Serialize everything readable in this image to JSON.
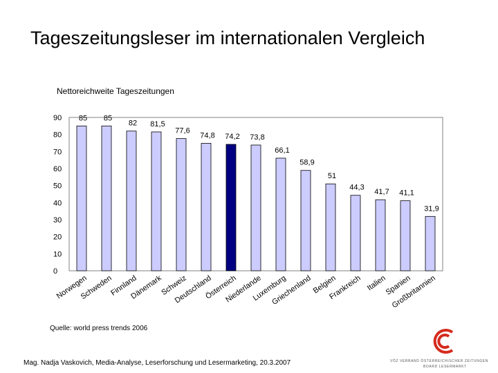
{
  "title": "Tageszeitungsleser im internationalen Vergleich",
  "source": "Quelle: world press trends 2006",
  "footer": "Mag. Nadja Vaskovich, Media-Analyse, Leserforschung und Lesermarketing, 20.3.2007",
  "logo": {
    "line1": "VÖZ VERBAND ÖSTERREICHISCHER ZEITUNGEN",
    "line2": "BOARD LESERMARKT",
    "accent_color": "#d52b1e"
  },
  "chart_data": {
    "type": "bar",
    "title": "Nettoreichweite Tageszeitungen",
    "categories": [
      "Norwegen",
      "Schweden",
      "Finnland",
      "Dänemark",
      "Schweiz",
      "Deutschland",
      "Österreich",
      "Niederlande",
      "Luxemburg",
      "Griechenland",
      "Belgien",
      "Frankreich",
      "Italien",
      "Spanien",
      "Großbritannien"
    ],
    "values": [
      85,
      85,
      82,
      81.5,
      77.6,
      74.8,
      74.2,
      73.8,
      66.1,
      58.9,
      51,
      44.3,
      41.7,
      41.1,
      31.9
    ],
    "value_labels": [
      "85",
      "85",
      "82",
      "81,5",
      "77,6",
      "74,8",
      "74,2",
      "73,8",
      "66,1",
      "58,9",
      "51",
      "44,3",
      "41,7",
      "41,1",
      "31,9"
    ],
    "highlight_index": 6,
    "bar_color": "#ccccff",
    "highlight_color": "#000080",
    "plot_background": "#ffffff",
    "yticks": [
      0,
      10,
      20,
      30,
      40,
      50,
      60,
      70,
      80,
      90
    ],
    "ylim": [
      0,
      90
    ],
    "xlabel": "",
    "ylabel": ""
  }
}
